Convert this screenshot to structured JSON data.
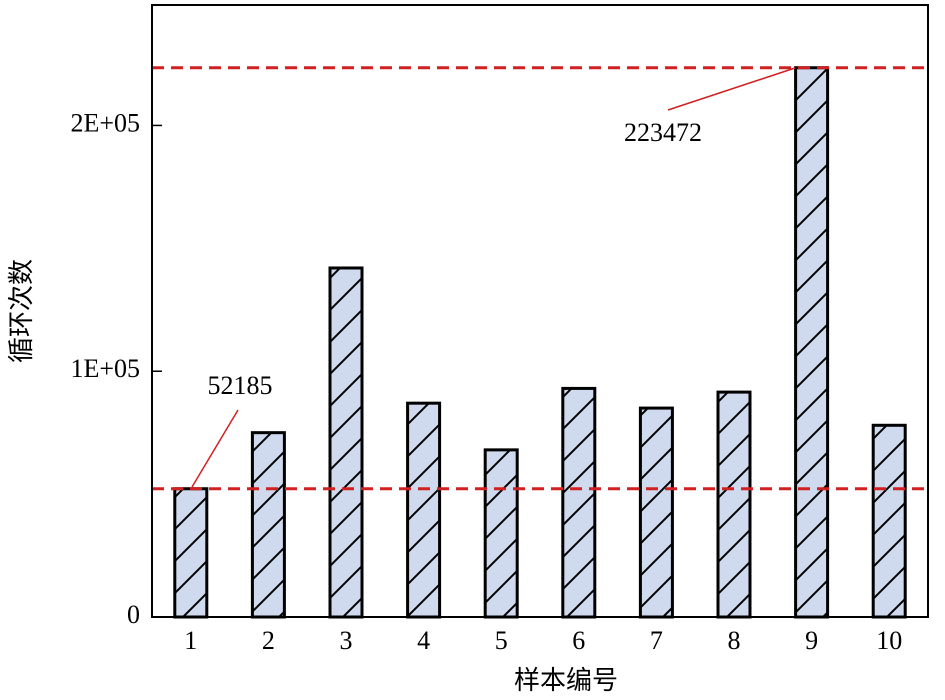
{
  "chart_data": {
    "type": "bar",
    "x_label": "样本编号",
    "y_label": "循环次数",
    "categories": [
      "1",
      "2",
      "3",
      "4",
      "5",
      "6",
      "7",
      "8",
      "9",
      "10"
    ],
    "values": [
      52185,
      75000,
      142000,
      87000,
      68000,
      93000,
      85000,
      91500,
      223472,
      78000
    ],
    "color": "#cfdaee",
    "edge_color": "#000000",
    "hatch": "/",
    "ylim": [
      0,
      249000
    ],
    "yticks": [
      0,
      {
        "value": 100000,
        "label": "1E+05"
      },
      {
        "value": 200000,
        "label": "2E+05"
      }
    ],
    "reference_lines": [
      52185,
      223472
    ],
    "reference_color": "#d02020"
  }
}
